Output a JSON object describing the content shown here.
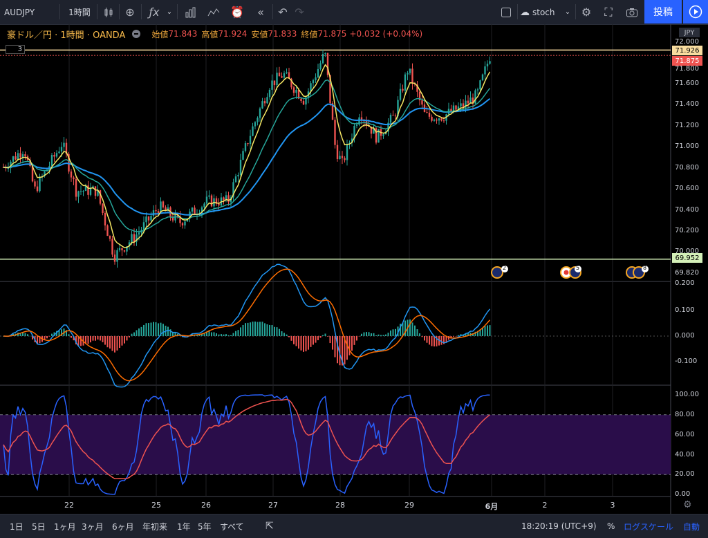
{
  "toolbar": {
    "symbol": "AUDJPY",
    "interval": "1時間",
    "indicator_search": "stoch",
    "post_button": "投稿"
  },
  "legend": {
    "title": "豪ドル／円 · 1時間 · OANDA",
    "open_label": "始値",
    "open": "71.843",
    "high_label": "高値",
    "high": "71.924",
    "low_label": "安値",
    "low": "71.833",
    "close_label": "終値",
    "close": "71.875",
    "change": "+0.032 (+0.04%)",
    "indicator_count": "3"
  },
  "price_axis": {
    "currency": "JPY",
    "labels": [
      "72.000",
      "71.800",
      "71.600",
      "71.400",
      "71.200",
      "71.000",
      "70.800",
      "70.600",
      "70.400",
      "70.200",
      "70.000",
      "69.820"
    ],
    "high_line_value": "71.926",
    "last_price": "71.875",
    "low_line_value": "69.952"
  },
  "macd_axis": {
    "labels": [
      "0.200",
      "0.100",
      "0.000",
      "-0.100"
    ]
  },
  "stoch_axis": {
    "labels": [
      "100.00",
      "80.00",
      "60.00",
      "40.00",
      "20.00",
      "0.00"
    ]
  },
  "date_axis": {
    "labels": [
      "22",
      "25",
      "26",
      "27",
      "28",
      "29",
      "6月",
      "2",
      "3"
    ]
  },
  "events": [
    {
      "count": "2"
    },
    {
      "count": "5"
    },
    {
      "count": "8"
    }
  ],
  "bottom_bar": {
    "ranges": [
      "1日",
      "5日",
      "1ヶ月",
      "3ヶ月",
      "6ヶ月",
      "年初来",
      "1年",
      "5年",
      "すべて"
    ],
    "time": "18:20:19 (UTC+9)",
    "percent": "%",
    "log_scale": "ログスケール",
    "auto": "自動"
  },
  "colors": {
    "up": "#26a69a",
    "down": "#ef5350",
    "ema_fast": "#f5e663",
    "ema_mid": "#26a69a",
    "ema_slow": "#2196f3",
    "macd": "#2196f3",
    "signal": "#ff6d00",
    "stoch_k": "#2962ff",
    "stoch_d": "#ef5350",
    "stoch_band": "#2a0d4a"
  }
}
